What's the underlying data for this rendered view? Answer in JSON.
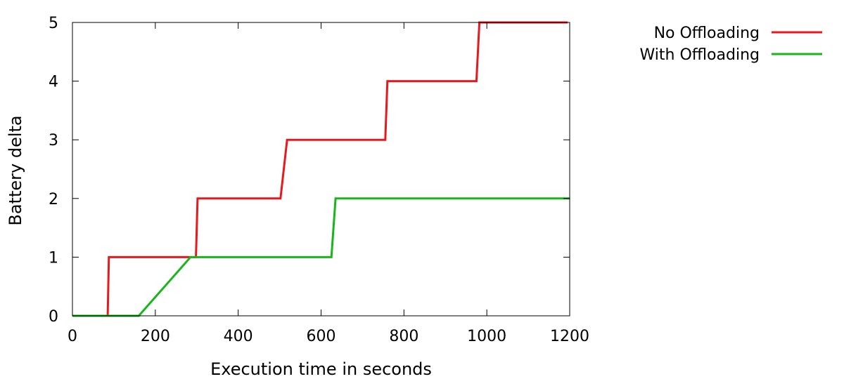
{
  "chart_data": {
    "type": "line",
    "title": "",
    "xlabel": "Execution time in seconds",
    "ylabel": "Battery delta",
    "xlim": [
      0,
      1200
    ],
    "ylim": [
      0,
      5
    ],
    "xticks": [
      0,
      200,
      400,
      600,
      800,
      1000,
      1200
    ],
    "yticks": [
      0,
      1,
      2,
      3,
      4,
      5
    ],
    "grid": false,
    "legend_position": "outside top-right",
    "series": [
      {
        "name": "No Offloading",
        "color": "#e8191e",
        "points": [
          [
            0,
            0
          ],
          [
            85,
            0
          ],
          [
            88,
            1
          ],
          [
            298,
            1
          ],
          [
            302,
            2
          ],
          [
            502,
            2
          ],
          [
            518,
            3
          ],
          [
            755,
            3
          ],
          [
            760,
            4
          ],
          [
            975,
            4
          ],
          [
            982,
            5
          ],
          [
            1195,
            5
          ]
        ]
      },
      {
        "name": "With Offloading",
        "color": "#1ab51a",
        "points": [
          [
            0,
            0
          ],
          [
            160,
            0
          ],
          [
            285,
            1
          ],
          [
            625,
            1
          ],
          [
            635,
            2
          ],
          [
            1200,
            2
          ]
        ]
      }
    ]
  }
}
